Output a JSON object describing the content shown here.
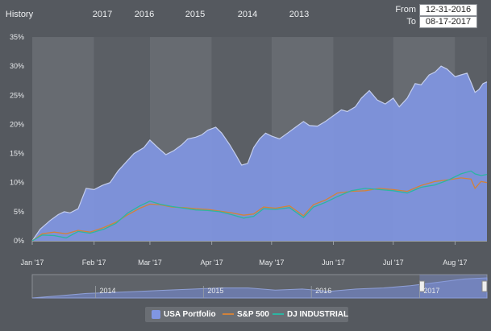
{
  "range_selector": {
    "label": "History",
    "buttons": [
      {
        "label": "2017",
        "active": true
      },
      {
        "label": "2016",
        "active": false
      },
      {
        "label": "2015",
        "active": false
      },
      {
        "label": "2014",
        "active": false
      },
      {
        "label": "2013",
        "active": false
      }
    ]
  },
  "date_range": {
    "from_label": "From",
    "from_value": "12-31-2016",
    "to_label": "To",
    "to_value": "08-17-2017"
  },
  "colors": {
    "portfolio_fill": "#8096e2",
    "portfolio_line": "#c4ceee",
    "sp500": "#d2823a",
    "dj": "#2cb5a2",
    "band_light": "#676b71",
    "band_dark": "#5b5f65"
  },
  "chart_data": {
    "type": "area",
    "x_start": "2017-01-01",
    "x_end": "2017-08-17",
    "xticks": [
      {
        "date": "2017-01-01",
        "label": "Jan '17"
      },
      {
        "date": "2017-02-01",
        "label": "Feb '17"
      },
      {
        "date": "2017-03-01",
        "label": "Mar '17"
      },
      {
        "date": "2017-04-01",
        "label": "Apr '17"
      },
      {
        "date": "2017-05-01",
        "label": "May '17"
      },
      {
        "date": "2017-06-01",
        "label": "Jun '17"
      },
      {
        "date": "2017-07-01",
        "label": "Jul '17"
      },
      {
        "date": "2017-08-01",
        "label": "Aug '17"
      }
    ],
    "yticks": [
      "0%",
      "5%",
      "10%",
      "15%",
      "20%",
      "25%",
      "30%",
      "35%"
    ],
    "ylim": [
      0,
      35
    ],
    "grid": false,
    "legend_position": "bottom-center",
    "series": [
      {
        "name": "USA Portfolio",
        "type": "area",
        "points": [
          [
            "2017-01-01",
            0
          ],
          [
            "2017-01-05",
            2
          ],
          [
            "2017-01-10",
            3.5
          ],
          [
            "2017-01-14",
            4.5
          ],
          [
            "2017-01-17",
            5
          ],
          [
            "2017-01-20",
            4.8
          ],
          [
            "2017-01-24",
            5.5
          ],
          [
            "2017-01-28",
            9
          ],
          [
            "2017-02-01",
            8.8
          ],
          [
            "2017-02-05",
            9.5
          ],
          [
            "2017-02-09",
            10
          ],
          [
            "2017-02-13",
            12
          ],
          [
            "2017-02-17",
            13.5
          ],
          [
            "2017-02-21",
            15
          ],
          [
            "2017-02-26",
            16
          ],
          [
            "2017-03-01",
            17.3
          ],
          [
            "2017-03-05",
            16
          ],
          [
            "2017-03-09",
            14.8
          ],
          [
            "2017-03-13",
            15.5
          ],
          [
            "2017-03-17",
            16.5
          ],
          [
            "2017-03-20",
            17.5
          ],
          [
            "2017-03-24",
            17.8
          ],
          [
            "2017-03-27",
            18.2
          ],
          [
            "2017-03-30",
            19
          ],
          [
            "2017-04-03",
            19.5
          ],
          [
            "2017-04-06",
            18.5
          ],
          [
            "2017-04-10",
            16.5
          ],
          [
            "2017-04-13",
            14.8
          ],
          [
            "2017-04-16",
            13
          ],
          [
            "2017-04-19",
            13.3
          ],
          [
            "2017-04-22",
            16
          ],
          [
            "2017-04-25",
            17.5
          ],
          [
            "2017-04-28",
            18.5
          ],
          [
            "2017-05-01",
            18
          ],
          [
            "2017-05-05",
            17.5
          ],
          [
            "2017-05-09",
            18.5
          ],
          [
            "2017-05-13",
            19.5
          ],
          [
            "2017-05-17",
            20.5
          ],
          [
            "2017-05-20",
            19.8
          ],
          [
            "2017-05-24",
            19.7
          ],
          [
            "2017-05-28",
            20.5
          ],
          [
            "2017-06-01",
            21.5
          ],
          [
            "2017-06-05",
            22.5
          ],
          [
            "2017-06-08",
            22.2
          ],
          [
            "2017-06-12",
            23
          ],
          [
            "2017-06-15",
            24.5
          ],
          [
            "2017-06-19",
            25.8
          ],
          [
            "2017-06-23",
            24.2
          ],
          [
            "2017-06-27",
            23.5
          ],
          [
            "2017-07-01",
            24.5
          ],
          [
            "2017-07-04",
            23
          ],
          [
            "2017-07-08",
            24.5
          ],
          [
            "2017-07-12",
            27
          ],
          [
            "2017-07-15",
            26.8
          ],
          [
            "2017-07-19",
            28.5
          ],
          [
            "2017-07-22",
            29
          ],
          [
            "2017-07-25",
            30
          ],
          [
            "2017-07-28",
            29.5
          ],
          [
            "2017-08-01",
            28.2
          ],
          [
            "2017-08-04",
            28.5
          ],
          [
            "2017-08-07",
            28.8
          ],
          [
            "2017-08-09",
            27.2
          ],
          [
            "2017-08-11",
            25.5
          ],
          [
            "2017-08-13",
            26
          ],
          [
            "2017-08-15",
            27
          ],
          [
            "2017-08-17",
            27.3
          ]
        ]
      },
      {
        "name": "S&P 500",
        "type": "line",
        "points": [
          [
            "2017-01-01",
            0
          ],
          [
            "2017-01-06",
            1.2
          ],
          [
            "2017-01-12",
            1.5
          ],
          [
            "2017-01-18",
            1.2
          ],
          [
            "2017-01-24",
            1.8
          ],
          [
            "2017-01-30",
            1.5
          ],
          [
            "2017-02-06",
            2.3
          ],
          [
            "2017-02-12",
            3.2
          ],
          [
            "2017-02-18",
            4.5
          ],
          [
            "2017-02-24",
            5.6
          ],
          [
            "2017-03-01",
            6.3
          ],
          [
            "2017-03-06",
            6.2
          ],
          [
            "2017-03-12",
            5.8
          ],
          [
            "2017-03-18",
            5.7
          ],
          [
            "2017-03-24",
            5.5
          ],
          [
            "2017-03-30",
            5.4
          ],
          [
            "2017-04-05",
            5.1
          ],
          [
            "2017-04-11",
            4.8
          ],
          [
            "2017-04-17",
            4.4
          ],
          [
            "2017-04-22",
            4.6
          ],
          [
            "2017-04-27",
            5.8
          ],
          [
            "2017-05-03",
            5.6
          ],
          [
            "2017-05-10",
            6.0
          ],
          [
            "2017-05-17",
            4.3
          ],
          [
            "2017-05-22",
            6.2
          ],
          [
            "2017-05-28",
            7.0
          ],
          [
            "2017-06-03",
            8.2
          ],
          [
            "2017-06-10",
            8.5
          ],
          [
            "2017-06-17",
            8.6
          ],
          [
            "2017-06-24",
            9.0
          ],
          [
            "2017-07-01",
            8.8
          ],
          [
            "2017-07-08",
            8.5
          ],
          [
            "2017-07-15",
            9.5
          ],
          [
            "2017-07-22",
            10.2
          ],
          [
            "2017-07-29",
            10.5
          ],
          [
            "2017-08-04",
            10.8
          ],
          [
            "2017-08-09",
            10.6
          ],
          [
            "2017-08-11",
            9.0
          ],
          [
            "2017-08-14",
            10.2
          ],
          [
            "2017-08-17",
            10.0
          ]
        ]
      },
      {
        "name": "DJ INDUSTRIAL",
        "type": "line",
        "points": [
          [
            "2017-01-01",
            0
          ],
          [
            "2017-01-06",
            1.0
          ],
          [
            "2017-01-12",
            0.9
          ],
          [
            "2017-01-18",
            0.5
          ],
          [
            "2017-01-24",
            1.6
          ],
          [
            "2017-01-30",
            1.3
          ],
          [
            "2017-02-06",
            2.0
          ],
          [
            "2017-02-12",
            3.0
          ],
          [
            "2017-02-18",
            4.8
          ],
          [
            "2017-02-24",
            6.0
          ],
          [
            "2017-03-01",
            6.8
          ],
          [
            "2017-03-06",
            6.3
          ],
          [
            "2017-03-12",
            5.9
          ],
          [
            "2017-03-18",
            5.6
          ],
          [
            "2017-03-24",
            5.3
          ],
          [
            "2017-03-30",
            5.2
          ],
          [
            "2017-04-05",
            5.0
          ],
          [
            "2017-04-11",
            4.5
          ],
          [
            "2017-04-17",
            3.9
          ],
          [
            "2017-04-22",
            4.2
          ],
          [
            "2017-04-27",
            5.5
          ],
          [
            "2017-05-03",
            5.4
          ],
          [
            "2017-05-10",
            5.7
          ],
          [
            "2017-05-17",
            4.0
          ],
          [
            "2017-05-22",
            5.8
          ],
          [
            "2017-05-28",
            6.6
          ],
          [
            "2017-06-03",
            7.6
          ],
          [
            "2017-06-10",
            8.6
          ],
          [
            "2017-06-17",
            9.0
          ],
          [
            "2017-06-24",
            8.8
          ],
          [
            "2017-07-01",
            8.6
          ],
          [
            "2017-07-08",
            8.2
          ],
          [
            "2017-07-15",
            9.2
          ],
          [
            "2017-07-22",
            9.6
          ],
          [
            "2017-07-29",
            10.5
          ],
          [
            "2017-08-04",
            11.5
          ],
          [
            "2017-08-09",
            12.0
          ],
          [
            "2017-08-11",
            11.5
          ],
          [
            "2017-08-14",
            11.2
          ],
          [
            "2017-08-17",
            11.4
          ]
        ]
      }
    ]
  },
  "navigator": {
    "year_labels": [
      "2014",
      "2015",
      "2016",
      "2017"
    ],
    "series": [
      [
        "2013-06-01",
        0
      ],
      [
        "2013-09-01",
        2
      ],
      [
        "2013-12-01",
        4
      ],
      [
        "2014-03-01",
        5
      ],
      [
        "2014-06-01",
        6
      ],
      [
        "2014-09-01",
        7
      ],
      [
        "2014-12-01",
        8
      ],
      [
        "2015-03-01",
        9
      ],
      [
        "2015-06-01",
        9
      ],
      [
        "2015-09-01",
        7
      ],
      [
        "2015-12-01",
        8
      ],
      [
        "2016-03-01",
        6
      ],
      [
        "2016-06-01",
        8
      ],
      [
        "2016-09-01",
        9
      ],
      [
        "2016-12-01",
        11
      ],
      [
        "2017-03-01",
        14
      ],
      [
        "2017-06-01",
        17
      ],
      [
        "2017-08-17",
        18
      ]
    ],
    "window_start": "2017-01-01",
    "window_end": "2017-08-17",
    "start": "2013-06-01",
    "end": "2017-08-17"
  }
}
